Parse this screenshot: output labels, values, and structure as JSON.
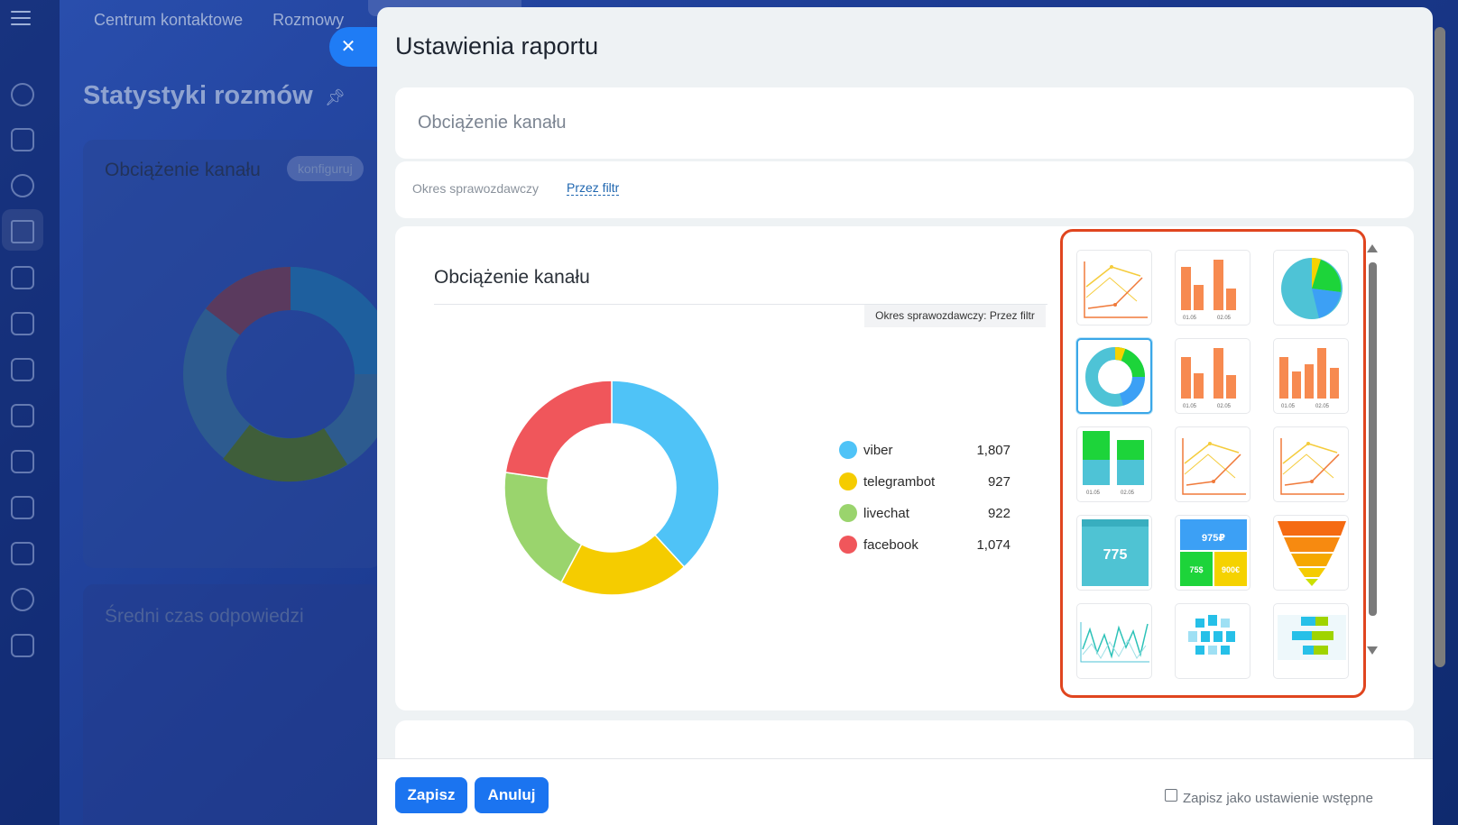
{
  "background": {
    "nav": [
      "Centrum kontaktowe",
      "Rozmowy"
    ],
    "page_title": "Statystyki rozmów",
    "card1_title": "Obciążenie kanału",
    "card1_badge": "konfiguruj",
    "card2_title": "Średni czas odpowiedzi"
  },
  "modal": {
    "title": "Ustawienia raportu",
    "report_name": "Obciążenie kanału",
    "period_label": "Okres sprawozdawczy",
    "period_link": "Przez filtr"
  },
  "preview": {
    "title": "Obciążenie kanału",
    "period_tag": "Okres sprawozdawczy: Przez filtr"
  },
  "chart_data": {
    "type": "pie",
    "style": "donut",
    "categories": [
      "viber",
      "telegrambot",
      "livechat",
      "facebook"
    ],
    "values": [
      1807,
      927,
      922,
      1074
    ],
    "value_labels": [
      "1,807",
      "927",
      "922",
      "1,074"
    ],
    "colors": [
      "#4fc3f7",
      "#f5cc00",
      "#9ad46d",
      "#f0565b"
    ],
    "legend": "right"
  },
  "picker": {
    "tiles": [
      {
        "icon": "line-chart-icon"
      },
      {
        "icon": "bar-chart-icon",
        "labels": [
          "01.05",
          "02.05"
        ]
      },
      {
        "icon": "pie-chart-icon"
      },
      {
        "icon": "donut-chart-icon",
        "selected": true
      },
      {
        "icon": "bar-chart-icon",
        "labels": [
          "01.05",
          "02.05"
        ]
      },
      {
        "icon": "bar-chart-icon",
        "labels": [
          "01.05",
          "02.05"
        ]
      },
      {
        "icon": "stacked-bar-icon",
        "labels": [
          "01.05",
          "02.05"
        ]
      },
      {
        "icon": "line-chart-icon"
      },
      {
        "icon": "line-chart-icon"
      },
      {
        "icon": "number-widget-icon",
        "value": "775"
      },
      {
        "icon": "multi-number-widget-icon",
        "values": [
          "975₽",
          "75$",
          "900€"
        ]
      },
      {
        "icon": "funnel-icon"
      },
      {
        "icon": "sparkline-icon"
      },
      {
        "icon": "grid-widget-icon"
      },
      {
        "icon": "gantt-widget-icon"
      }
    ]
  },
  "footer": {
    "save": "Zapisz",
    "cancel": "Anuluj",
    "preset_label": "Zapisz jako ustawienie wstępne"
  },
  "colors": {
    "accent": "#1b74f0",
    "highlight_border": "#e0451f",
    "bar_orange": "#f78a50"
  }
}
